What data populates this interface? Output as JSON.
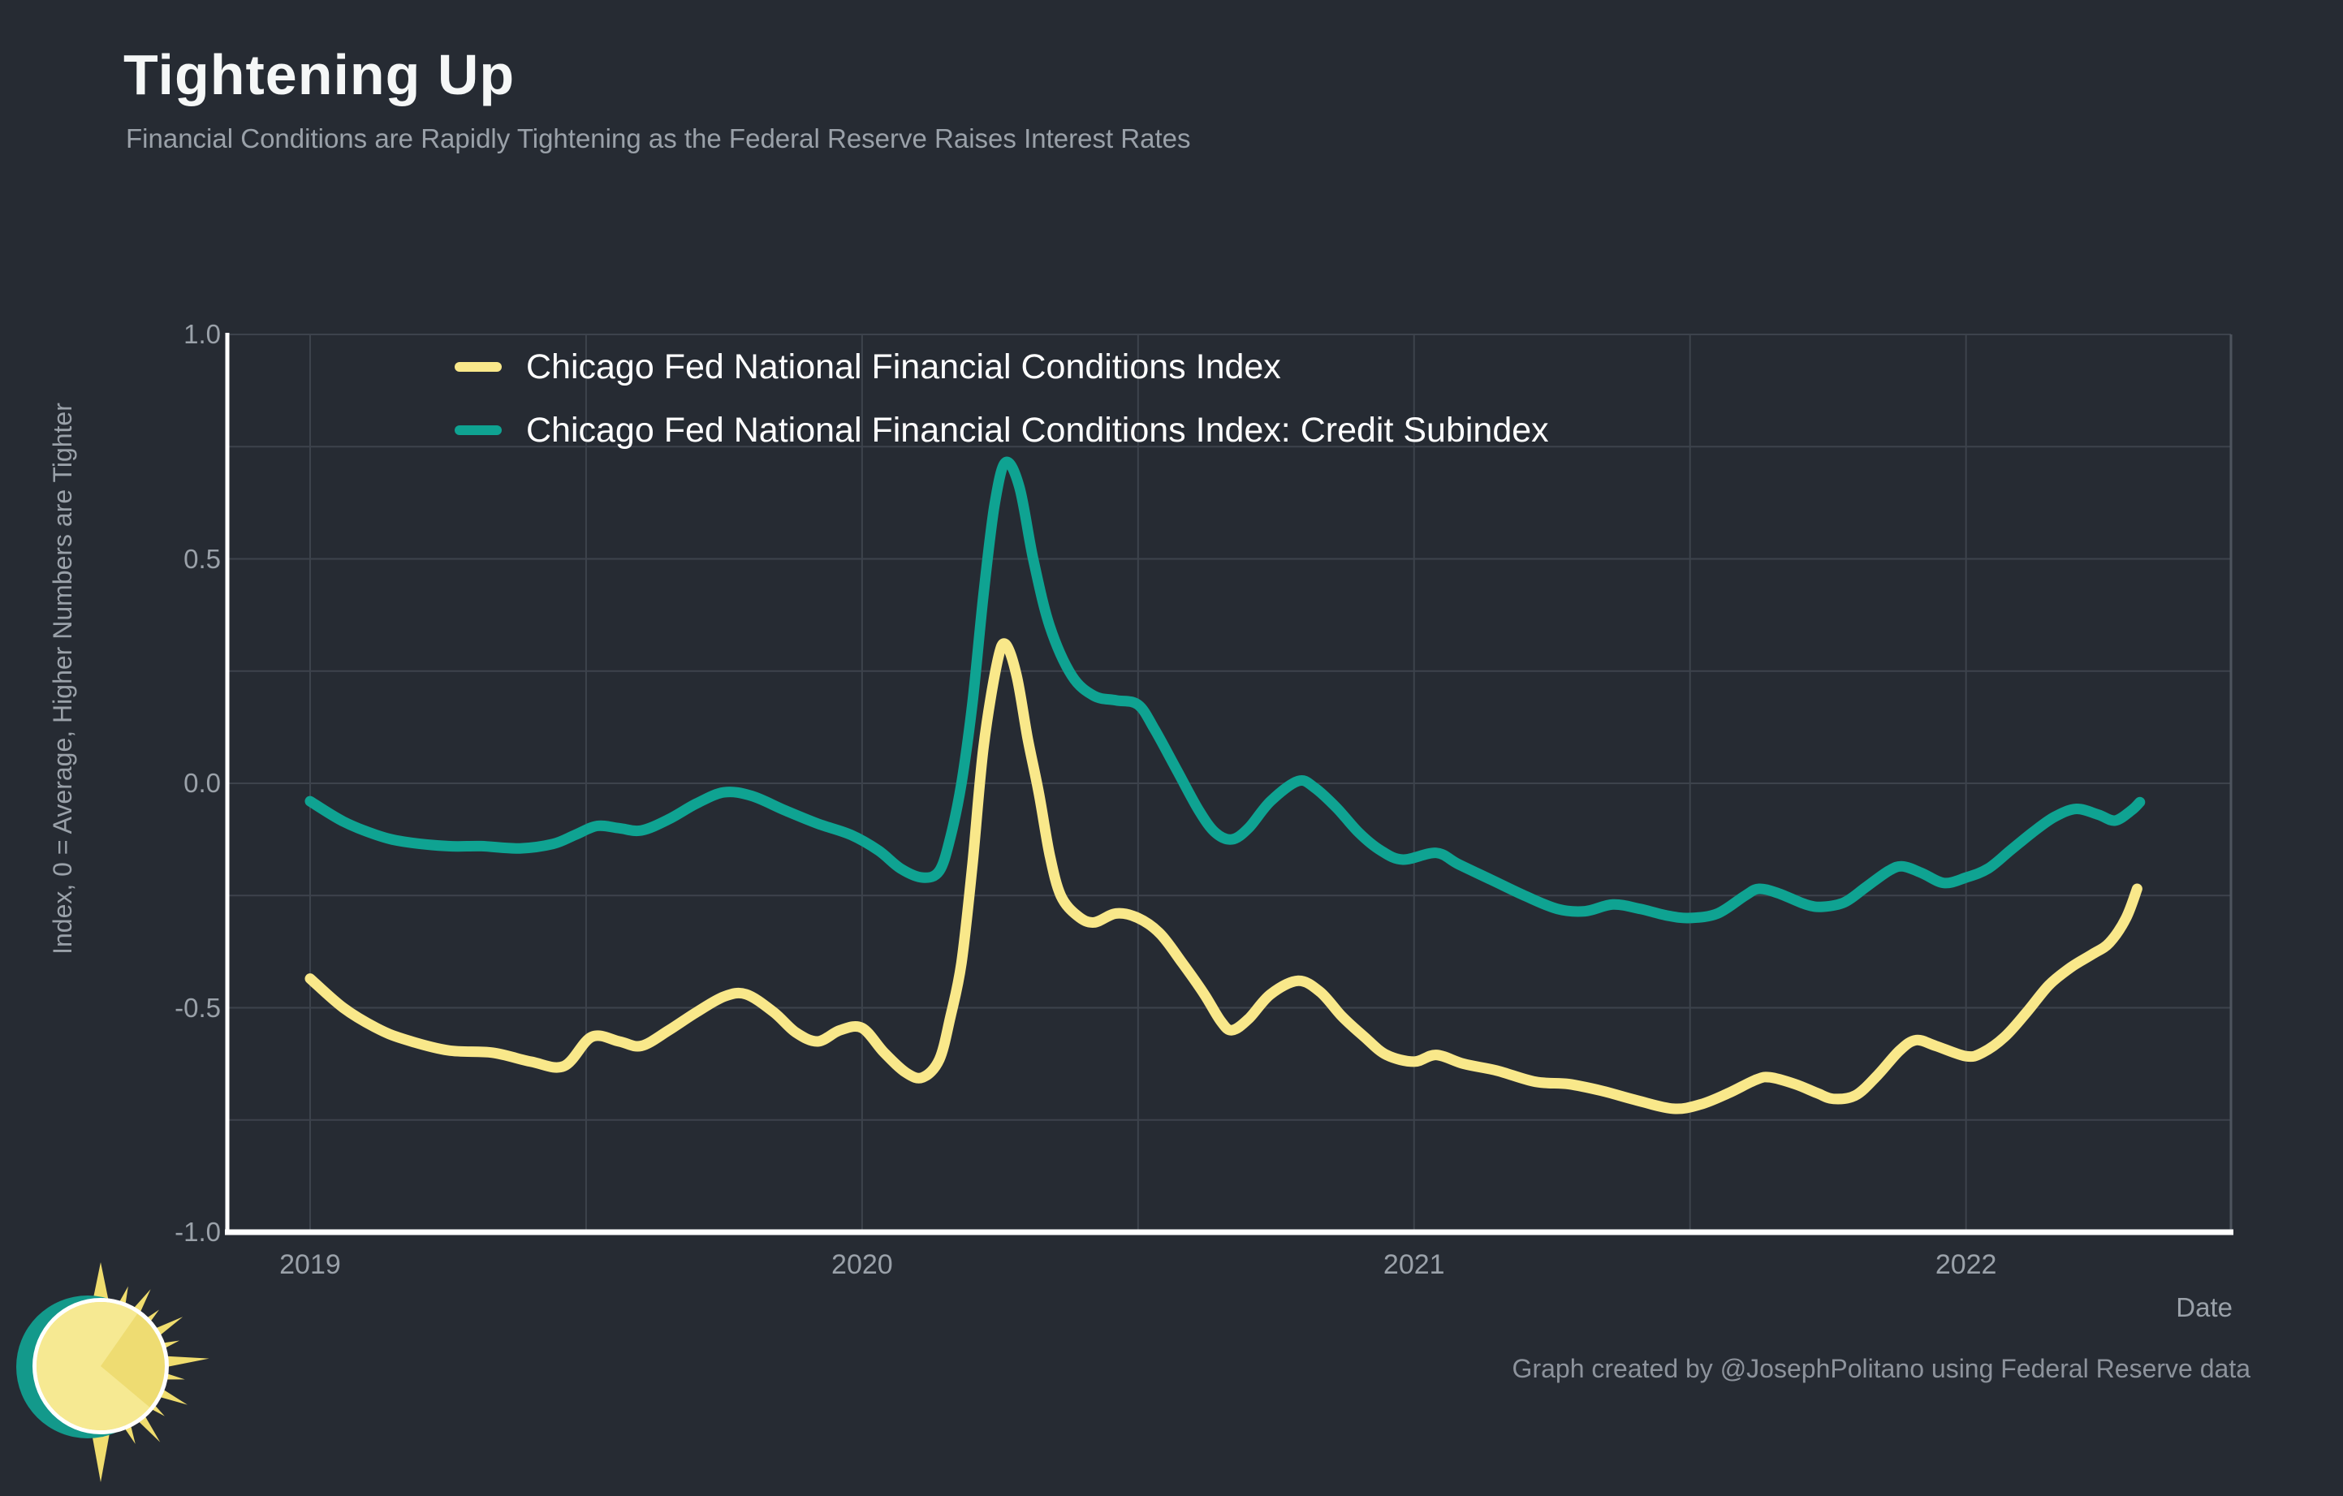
{
  "header": {
    "title": "Tightening Up",
    "subtitle": "Financial Conditions are Rapidly Tightening as the Federal Reserve Raises Interest Rates"
  },
  "footer": {
    "attribution": "Graph created by @JosephPolitano using Federal Reserve data"
  },
  "colors": {
    "background": "#262b33",
    "title_text": "#f5f7f7",
    "muted_text": "#9aa1a9",
    "footer_text": "#8d939c",
    "legend_text": "#ffffff",
    "grid": "#3d434c",
    "plot_border": "#4d545e",
    "axis": "#ffffff",
    "nfci_line": "#f9e88a",
    "credit_line": "#0fa392"
  },
  "logo": {
    "name": "sun-logo",
    "ray_color": "#f0dd6e",
    "back_circle_color": "#13998b",
    "ring_color": "#ffffff",
    "disc_color": "#eedc72",
    "disc_highlight_color": "#f6e992"
  },
  "chart_data": {
    "type": "line",
    "title": "Tightening Up",
    "subtitle": "Financial Conditions are Rapidly Tightening as the Federal Reserve Raises Interest Rates",
    "xlabel": "Date",
    "ylabel": "Index, 0 = Average, Higher Numbers are Tighter",
    "xlim": [
      2018.85,
      2022.48
    ],
    "ylim": [
      -1.0,
      1.0
    ],
    "grid": {
      "shown": true,
      "y_step": 0.25,
      "x_step_years": 0.5
    },
    "legend_position": "top-inside",
    "x_ticks": [
      {
        "value": 2019,
        "label": "2019"
      },
      {
        "value": 2020,
        "label": "2020"
      },
      {
        "value": 2021,
        "label": "2021"
      },
      {
        "value": 2022,
        "label": "2022"
      }
    ],
    "y_ticks": [
      {
        "value": 1.0,
        "label": "1.0"
      },
      {
        "value": 0.5,
        "label": "0.5"
      },
      {
        "value": 0.0,
        "label": "0.0"
      },
      {
        "value": -0.5,
        "label": "-0.5"
      },
      {
        "value": -1.0,
        "label": "-1.0"
      }
    ],
    "series": [
      {
        "name": "Chicago Fed National Financial Conditions Index",
        "color": "#f9e88a",
        "points": [
          [
            2019.0,
            -0.435
          ],
          [
            2019.06,
            -0.5
          ],
          [
            2019.12,
            -0.545
          ],
          [
            2019.17,
            -0.57
          ],
          [
            2019.25,
            -0.595
          ],
          [
            2019.33,
            -0.6
          ],
          [
            2019.4,
            -0.62
          ],
          [
            2019.46,
            -0.63
          ],
          [
            2019.51,
            -0.565
          ],
          [
            2019.56,
            -0.575
          ],
          [
            2019.6,
            -0.585
          ],
          [
            2019.65,
            -0.55
          ],
          [
            2019.7,
            -0.51
          ],
          [
            2019.75,
            -0.475
          ],
          [
            2019.79,
            -0.47
          ],
          [
            2019.84,
            -0.51
          ],
          [
            2019.88,
            -0.555
          ],
          [
            2019.92,
            -0.575
          ],
          [
            2019.96,
            -0.55
          ],
          [
            2020.0,
            -0.545
          ],
          [
            2020.04,
            -0.6
          ],
          [
            2020.08,
            -0.645
          ],
          [
            2020.11,
            -0.655
          ],
          [
            2020.14,
            -0.615
          ],
          [
            2020.16,
            -0.52
          ],
          [
            2020.18,
            -0.4
          ],
          [
            2020.2,
            -0.18
          ],
          [
            2020.22,
            0.08
          ],
          [
            2020.245,
            0.27
          ],
          [
            2020.26,
            0.31
          ],
          [
            2020.28,
            0.24
          ],
          [
            2020.3,
            0.1
          ],
          [
            2020.32,
            -0.02
          ],
          [
            2020.34,
            -0.16
          ],
          [
            2020.36,
            -0.25
          ],
          [
            2020.39,
            -0.295
          ],
          [
            2020.42,
            -0.31
          ],
          [
            2020.46,
            -0.29
          ],
          [
            2020.5,
            -0.3
          ],
          [
            2020.54,
            -0.335
          ],
          [
            2020.58,
            -0.4
          ],
          [
            2020.62,
            -0.47
          ],
          [
            2020.65,
            -0.53
          ],
          [
            2020.67,
            -0.55
          ],
          [
            2020.7,
            -0.525
          ],
          [
            2020.74,
            -0.47
          ],
          [
            2020.79,
            -0.44
          ],
          [
            2020.83,
            -0.465
          ],
          [
            2020.87,
            -0.52
          ],
          [
            2020.91,
            -0.565
          ],
          [
            2020.95,
            -0.605
          ],
          [
            2021.0,
            -0.62
          ],
          [
            2021.04,
            -0.605
          ],
          [
            2021.09,
            -0.625
          ],
          [
            2021.15,
            -0.64
          ],
          [
            2021.22,
            -0.665
          ],
          [
            2021.28,
            -0.67
          ],
          [
            2021.34,
            -0.685
          ],
          [
            2021.4,
            -0.705
          ],
          [
            2021.47,
            -0.725
          ],
          [
            2021.52,
            -0.715
          ],
          [
            2021.57,
            -0.69
          ],
          [
            2021.62,
            -0.66
          ],
          [
            2021.645,
            -0.655
          ],
          [
            2021.69,
            -0.67
          ],
          [
            2021.73,
            -0.69
          ],
          [
            2021.76,
            -0.703
          ],
          [
            2021.8,
            -0.695
          ],
          [
            2021.84,
            -0.65
          ],
          [
            2021.88,
            -0.595
          ],
          [
            2021.91,
            -0.572
          ],
          [
            2021.945,
            -0.585
          ],
          [
            2022.0,
            -0.608
          ],
          [
            2022.03,
            -0.6
          ],
          [
            2022.07,
            -0.565
          ],
          [
            2022.11,
            -0.51
          ],
          [
            2022.15,
            -0.45
          ],
          [
            2022.19,
            -0.41
          ],
          [
            2022.23,
            -0.38
          ],
          [
            2022.26,
            -0.355
          ],
          [
            2022.29,
            -0.3
          ],
          [
            2022.31,
            -0.235
          ]
        ]
      },
      {
        "name": "Chicago Fed National Financial Conditions Index: Credit Subindex",
        "color": "#0fa392",
        "points": [
          [
            2019.0,
            -0.04
          ],
          [
            2019.06,
            -0.085
          ],
          [
            2019.12,
            -0.115
          ],
          [
            2019.17,
            -0.13
          ],
          [
            2019.25,
            -0.14
          ],
          [
            2019.31,
            -0.14
          ],
          [
            2019.38,
            -0.145
          ],
          [
            2019.44,
            -0.135
          ],
          [
            2019.48,
            -0.115
          ],
          [
            2019.52,
            -0.095
          ],
          [
            2019.56,
            -0.1
          ],
          [
            2019.6,
            -0.105
          ],
          [
            2019.65,
            -0.08
          ],
          [
            2019.7,
            -0.045
          ],
          [
            2019.75,
            -0.02
          ],
          [
            2019.8,
            -0.028
          ],
          [
            2019.86,
            -0.06
          ],
          [
            2019.92,
            -0.09
          ],
          [
            2019.98,
            -0.115
          ],
          [
            2020.03,
            -0.15
          ],
          [
            2020.07,
            -0.19
          ],
          [
            2020.11,
            -0.21
          ],
          [
            2020.14,
            -0.195
          ],
          [
            2020.16,
            -0.12
          ],
          [
            2020.18,
            0.0
          ],
          [
            2020.2,
            0.18
          ],
          [
            2020.22,
            0.42
          ],
          [
            2020.24,
            0.62
          ],
          [
            2020.26,
            0.715
          ],
          [
            2020.285,
            0.66
          ],
          [
            2020.31,
            0.5
          ],
          [
            2020.34,
            0.35
          ],
          [
            2020.38,
            0.24
          ],
          [
            2020.42,
            0.195
          ],
          [
            2020.46,
            0.185
          ],
          [
            2020.5,
            0.175
          ],
          [
            2020.53,
            0.12
          ],
          [
            2020.57,
            0.03
          ],
          [
            2020.61,
            -0.06
          ],
          [
            2020.64,
            -0.11
          ],
          [
            2020.67,
            -0.125
          ],
          [
            2020.7,
            -0.1
          ],
          [
            2020.74,
            -0.04
          ],
          [
            2020.79,
            0.005
          ],
          [
            2020.82,
            -0.01
          ],
          [
            2020.86,
            -0.055
          ],
          [
            2020.9,
            -0.11
          ],
          [
            2020.94,
            -0.15
          ],
          [
            2020.98,
            -0.17
          ],
          [
            2021.04,
            -0.155
          ],
          [
            2021.08,
            -0.18
          ],
          [
            2021.14,
            -0.215
          ],
          [
            2021.2,
            -0.25
          ],
          [
            2021.26,
            -0.28
          ],
          [
            2021.31,
            -0.285
          ],
          [
            2021.36,
            -0.27
          ],
          [
            2021.41,
            -0.28
          ],
          [
            2021.46,
            -0.295
          ],
          [
            2021.5,
            -0.3
          ],
          [
            2021.55,
            -0.29
          ],
          [
            2021.6,
            -0.25
          ],
          [
            2021.625,
            -0.235
          ],
          [
            2021.66,
            -0.245
          ],
          [
            2021.71,
            -0.27
          ],
          [
            2021.74,
            -0.275
          ],
          [
            2021.78,
            -0.265
          ],
          [
            2021.82,
            -0.23
          ],
          [
            2021.86,
            -0.195
          ],
          [
            2021.885,
            -0.185
          ],
          [
            2021.92,
            -0.2
          ],
          [
            2021.96,
            -0.222
          ],
          [
            2022.0,
            -0.21
          ],
          [
            2022.04,
            -0.19
          ],
          [
            2022.08,
            -0.15
          ],
          [
            2022.12,
            -0.11
          ],
          [
            2022.16,
            -0.075
          ],
          [
            2022.2,
            -0.057
          ],
          [
            2022.24,
            -0.07
          ],
          [
            2022.27,
            -0.083
          ],
          [
            2022.3,
            -0.06
          ],
          [
            2022.315,
            -0.042
          ]
        ]
      }
    ]
  }
}
